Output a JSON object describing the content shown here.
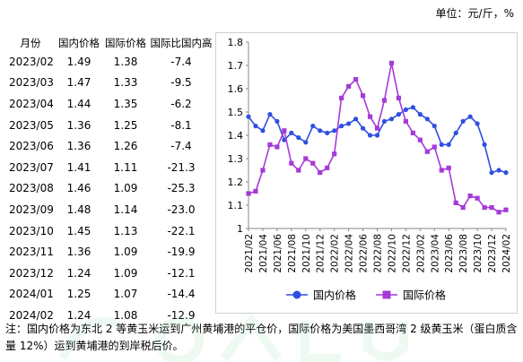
{
  "unit_label": "单位：元/斤，%",
  "table": {
    "headers": [
      "月份",
      "国内价格",
      "国际价格",
      "国际比国内高"
    ],
    "rows": [
      [
        "2023/02",
        "1.49",
        "1.38",
        "-7.4"
      ],
      [
        "2023/03",
        "1.47",
        "1.33",
        "-9.5"
      ],
      [
        "2023/04",
        "1.44",
        "1.35",
        "-6.2"
      ],
      [
        "2023/05",
        "1.36",
        "1.25",
        "-8.1"
      ],
      [
        "2023/06",
        "1.36",
        "1.26",
        "-7.4"
      ],
      [
        "2023/07",
        "1.41",
        "1.11",
        "-21.3"
      ],
      [
        "2023/08",
        "1.46",
        "1.09",
        "-25.3"
      ],
      [
        "2023/09",
        "1.48",
        "1.14",
        "-23.0"
      ],
      [
        "2023/10",
        "1.45",
        "1.13",
        "-22.1"
      ],
      [
        "2023/11",
        "1.36",
        "1.09",
        "-19.9"
      ],
      [
        "2023/12",
        "1.24",
        "1.09",
        "-12.1"
      ],
      [
        "2024/01",
        "1.25",
        "1.07",
        "-14.4"
      ],
      [
        "2024/02",
        "1.24",
        "1.08",
        "-12.9"
      ]
    ]
  },
  "chart_data": {
    "type": "line",
    "title": "",
    "xlabel": "",
    "ylabel": "",
    "ylim": [
      1.0,
      1.8
    ],
    "yticks": [
      "1",
      "1.1",
      "1.2",
      "1.3",
      "1.4",
      "1.5",
      "1.6",
      "1.7",
      "1.8"
    ],
    "x": [
      "2021/02",
      "2021/03",
      "2021/04",
      "2021/05",
      "2021/06",
      "2021/07",
      "2021/08",
      "2021/09",
      "2021/10",
      "2021/11",
      "2021/12",
      "2022/01",
      "2022/02",
      "2022/03",
      "2022/04",
      "2022/05",
      "2022/06",
      "2022/07",
      "2022/08",
      "2022/09",
      "2022/10",
      "2022/11",
      "2022/12",
      "2023/01",
      "2023/02",
      "2023/03",
      "2023/04",
      "2023/05",
      "2023/06",
      "2023/07",
      "2023/08",
      "2023/09",
      "2023/10",
      "2023/11",
      "2023/12",
      "2024/01",
      "2024/02"
    ],
    "xticks": [
      "2021/02",
      "2021/04",
      "2021/06",
      "2021/08",
      "2021/10",
      "2021/12",
      "2022/02",
      "2022/04",
      "2022/06",
      "2022/08",
      "2022/10",
      "2022/12",
      "2023/02",
      "2023/04",
      "2023/06",
      "2023/08",
      "2023/10",
      "2023/12",
      "2024/02"
    ],
    "series": [
      {
        "name": "国内价格",
        "color": "#2f4fe0",
        "marker": "circle",
        "values": [
          1.48,
          1.44,
          1.42,
          1.49,
          1.46,
          1.38,
          1.41,
          1.39,
          1.37,
          1.44,
          1.42,
          1.41,
          1.42,
          1.44,
          1.45,
          1.47,
          1.43,
          1.4,
          1.4,
          1.46,
          1.47,
          1.49,
          1.51,
          1.52,
          1.49,
          1.47,
          1.44,
          1.36,
          1.36,
          1.41,
          1.46,
          1.48,
          1.45,
          1.36,
          1.24,
          1.25,
          1.24
        ]
      },
      {
        "name": "国际价格",
        "color": "#a63ad9",
        "marker": "square",
        "values": [
          1.15,
          1.16,
          1.25,
          1.36,
          1.35,
          1.42,
          1.28,
          1.25,
          1.3,
          1.28,
          1.24,
          1.26,
          1.32,
          1.56,
          1.61,
          1.64,
          1.57,
          1.48,
          1.43,
          1.55,
          1.71,
          1.56,
          1.46,
          1.41,
          1.38,
          1.33,
          1.35,
          1.25,
          1.26,
          1.11,
          1.09,
          1.14,
          1.13,
          1.09,
          1.09,
          1.07,
          1.08
        ]
      }
    ],
    "legend": "bottom",
    "grid": false
  },
  "footnote": "注：国内价格为东北 2 等黄玉米运到广州黄埔港的平仓价，国际价格为美国墨西哥湾 2 级黄玉米（蛋白质含量 12%）运到黄埔港的到岸税后价。"
}
